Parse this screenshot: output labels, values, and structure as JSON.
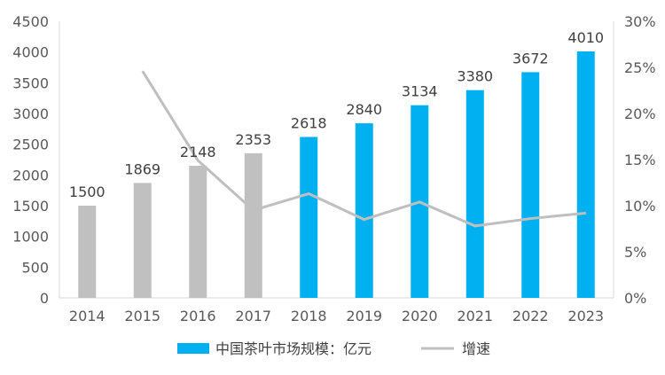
{
  "chart_data": {
    "type": "bar+line",
    "title": "",
    "xlabel": "",
    "ylabel": "",
    "categories": [
      "2014",
      "2015",
      "2016",
      "2017",
      "2018",
      "2019",
      "2020",
      "2021",
      "2022",
      "2023"
    ],
    "series": [
      {
        "name": "中国茶叶市场规模：亿元",
        "type": "bar",
        "axis": "left",
        "values": [
          1500,
          1869,
          2148,
          2353,
          2618,
          2840,
          3134,
          3380,
          3672,
          4010
        ],
        "data_labels": [
          "1500",
          "1869",
          "2148",
          "2353",
          "2618",
          "2840",
          "3134",
          "3380",
          "3672",
          "4010"
        ],
        "colors": [
          "#c0c0c0",
          "#c0c0c0",
          "#c0c0c0",
          "#c0c0c0",
          "#00b0f0",
          "#00b0f0",
          "#00b0f0",
          "#00b0f0",
          "#00b0f0",
          "#00b0f0"
        ]
      },
      {
        "name": "增速",
        "type": "line",
        "axis": "right",
        "color": "#bfbfbf",
        "values": [
          null,
          0.246,
          0.149,
          0.095,
          0.113,
          0.085,
          0.104,
          0.078,
          0.086,
          0.092
        ]
      }
    ],
    "y_left": {
      "ylim": [
        0,
        4500
      ],
      "ticks": [
        "0",
        "500",
        "1000",
        "1500",
        "2000",
        "2500",
        "3000",
        "3500",
        "4000",
        "4500"
      ]
    },
    "y_right": {
      "ylim": [
        0,
        0.3
      ],
      "ticks": [
        "0%",
        "5%",
        "10%",
        "15%",
        "20%",
        "25%",
        "30%"
      ]
    },
    "grid": false,
    "legend": {
      "position": "bottom",
      "items": [
        {
          "label": "中国茶叶市场规模：亿元",
          "color": "#00b0f0",
          "kind": "bar"
        },
        {
          "label": "增速",
          "color": "#bfbfbf",
          "kind": "line"
        }
      ]
    }
  }
}
